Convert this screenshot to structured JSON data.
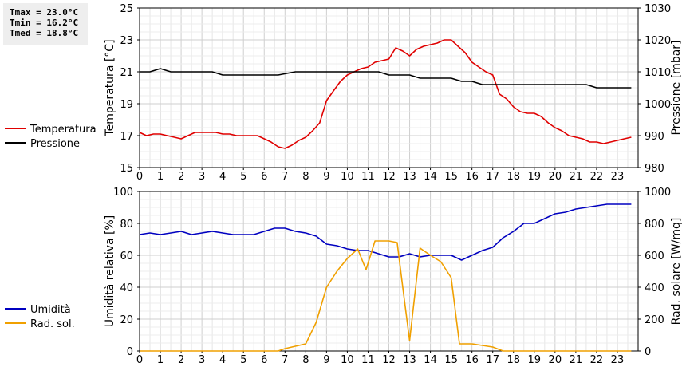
{
  "stats": {
    "tmax": "Tmax = 23.0°C",
    "tmin": "Tmin = 16.2°C",
    "tmed": "Tmed = 18.8°C"
  },
  "chart_data": [
    {
      "type": "line",
      "x_ticks": [
        0,
        1,
        2,
        3,
        4,
        5,
        6,
        7,
        8,
        9,
        10,
        11,
        12,
        13,
        14,
        15,
        16,
        17,
        18,
        19,
        20,
        21,
        22,
        23
      ],
      "xlim": [
        0,
        24
      ],
      "ylabel": "Temperatura [°C]",
      "ylim": [
        15,
        25
      ],
      "y_ticks": [
        15,
        17,
        19,
        21,
        23,
        25
      ],
      "y2label": "Pressione [mbar]",
      "y2lim": [
        980,
        1030
      ],
      "y2_ticks": [
        980,
        990,
        1000,
        1010,
        1020,
        1030
      ],
      "grid": true,
      "legend_position": "left",
      "series": [
        {
          "name": "Temperatura",
          "axis": "left",
          "color": "#e00000",
          "points": [
            [
              0,
              17.2
            ],
            [
              0.33,
              17.0
            ],
            [
              0.67,
              17.1
            ],
            [
              1,
              17.1
            ],
            [
              1.33,
              17.0
            ],
            [
              1.67,
              16.9
            ],
            [
              2,
              16.8
            ],
            [
              2.33,
              17.0
            ],
            [
              2.67,
              17.2
            ],
            [
              3,
              17.2
            ],
            [
              3.33,
              17.2
            ],
            [
              3.67,
              17.2
            ],
            [
              4,
              17.1
            ],
            [
              4.33,
              17.1
            ],
            [
              4.67,
              17.0
            ],
            [
              5,
              17.0
            ],
            [
              5.33,
              17.0
            ],
            [
              5.67,
              17.0
            ],
            [
              6,
              16.8
            ],
            [
              6.33,
              16.6
            ],
            [
              6.67,
              16.3
            ],
            [
              7,
              16.2
            ],
            [
              7.33,
              16.4
            ],
            [
              7.67,
              16.7
            ],
            [
              8,
              16.9
            ],
            [
              8.33,
              17.3
            ],
            [
              8.67,
              17.8
            ],
            [
              9,
              19.2
            ],
            [
              9.33,
              19.8
            ],
            [
              9.67,
              20.4
            ],
            [
              10,
              20.8
            ],
            [
              10.33,
              21.0
            ],
            [
              10.67,
              21.2
            ],
            [
              11,
              21.3
            ],
            [
              11.33,
              21.6
            ],
            [
              11.67,
              21.7
            ],
            [
              12,
              21.8
            ],
            [
              12.33,
              22.5
            ],
            [
              12.67,
              22.3
            ],
            [
              13,
              22.0
            ],
            [
              13.33,
              22.4
            ],
            [
              13.67,
              22.6
            ],
            [
              14,
              22.7
            ],
            [
              14.33,
              22.8
            ],
            [
              14.67,
              23.0
            ],
            [
              15,
              23.0
            ],
            [
              15.33,
              22.6
            ],
            [
              15.67,
              22.2
            ],
            [
              16,
              21.6
            ],
            [
              16.33,
              21.3
            ],
            [
              16.67,
              21.0
            ],
            [
              17,
              20.8
            ],
            [
              17.33,
              19.6
            ],
            [
              17.67,
              19.3
            ],
            [
              18,
              18.8
            ],
            [
              18.33,
              18.5
            ],
            [
              18.67,
              18.4
            ],
            [
              19,
              18.4
            ],
            [
              19.33,
              18.2
            ],
            [
              19.67,
              17.8
            ],
            [
              20,
              17.5
            ],
            [
              20.33,
              17.3
            ],
            [
              20.67,
              17.0
            ],
            [
              21,
              16.9
            ],
            [
              21.33,
              16.8
            ],
            [
              21.67,
              16.6
            ],
            [
              22,
              16.6
            ],
            [
              22.33,
              16.5
            ],
            [
              22.67,
              16.6
            ],
            [
              23,
              16.7
            ],
            [
              23.33,
              16.8
            ],
            [
              23.67,
              16.9
            ]
          ]
        },
        {
          "name": "Pressione",
          "axis": "right",
          "color": "#000000",
          "points": [
            [
              0,
              1010
            ],
            [
              0.5,
              1010
            ],
            [
              1,
              1011
            ],
            [
              1.5,
              1010
            ],
            [
              2,
              1010
            ],
            [
              3,
              1010
            ],
            [
              3.5,
              1010
            ],
            [
              4,
              1009
            ],
            [
              4.5,
              1009
            ],
            [
              5,
              1009
            ],
            [
              6,
              1009
            ],
            [
              6.67,
              1009
            ],
            [
              7.5,
              1010
            ],
            [
              8,
              1010
            ],
            [
              9,
              1010
            ],
            [
              10,
              1010
            ],
            [
              11,
              1010
            ],
            [
              11.5,
              1010
            ],
            [
              12,
              1009
            ],
            [
              12.5,
              1009
            ],
            [
              13,
              1009
            ],
            [
              13.5,
              1008
            ],
            [
              14,
              1008
            ],
            [
              15,
              1008
            ],
            [
              15.5,
              1007
            ],
            [
              16,
              1007
            ],
            [
              16.5,
              1006
            ],
            [
              17,
              1006
            ],
            [
              18,
              1006
            ],
            [
              19,
              1006
            ],
            [
              20,
              1006
            ],
            [
              21,
              1006
            ],
            [
              21.5,
              1006
            ],
            [
              22,
              1005
            ],
            [
              23,
              1005
            ],
            [
              23.67,
              1005
            ]
          ]
        }
      ]
    },
    {
      "type": "line",
      "x_ticks": [
        0,
        1,
        2,
        3,
        4,
        5,
        6,
        7,
        8,
        9,
        10,
        11,
        12,
        13,
        14,
        15,
        16,
        17,
        18,
        19,
        20,
        21,
        22,
        23
      ],
      "xlim": [
        0,
        24
      ],
      "ylabel": "Umidità relativa [%]",
      "ylim": [
        0,
        100
      ],
      "y_ticks": [
        0,
        20,
        40,
        60,
        80,
        100
      ],
      "y2label": "Rad. solare [W/mq]",
      "y2lim": [
        0,
        1000
      ],
      "y2_ticks": [
        0,
        200,
        400,
        600,
        800,
        1000
      ],
      "grid": true,
      "legend_position": "left",
      "series": [
        {
          "name": "Umidità",
          "axis": "left",
          "color": "#0000c0",
          "points": [
            [
              0,
              73
            ],
            [
              0.5,
              74
            ],
            [
              1,
              73
            ],
            [
              1.5,
              74
            ],
            [
              2,
              75
            ],
            [
              2.5,
              73
            ],
            [
              3,
              74
            ],
            [
              3.5,
              75
            ],
            [
              4,
              74
            ],
            [
              4.5,
              73
            ],
            [
              5,
              73
            ],
            [
              5.5,
              73
            ],
            [
              6,
              75
            ],
            [
              6.5,
              77
            ],
            [
              7,
              77
            ],
            [
              7.5,
              75
            ],
            [
              8,
              74
            ],
            [
              8.5,
              72
            ],
            [
              9,
              67
            ],
            [
              9.5,
              66
            ],
            [
              10,
              64
            ],
            [
              10.5,
              63
            ],
            [
              11,
              63
            ],
            [
              11.5,
              61
            ],
            [
              12,
              59
            ],
            [
              12.5,
              59
            ],
            [
              13,
              61
            ],
            [
              13.5,
              59
            ],
            [
              14,
              60
            ],
            [
              14.5,
              60
            ],
            [
              15,
              60
            ],
            [
              15.5,
              57
            ],
            [
              16,
              60
            ],
            [
              16.5,
              63
            ],
            [
              17,
              65
            ],
            [
              17.5,
              71
            ],
            [
              18,
              75
            ],
            [
              18.5,
              80
            ],
            [
              19,
              80
            ],
            [
              19.5,
              83
            ],
            [
              20,
              86
            ],
            [
              20.5,
              87
            ],
            [
              21,
              89
            ],
            [
              21.5,
              90
            ],
            [
              22,
              91
            ],
            [
              22.5,
              92
            ],
            [
              23,
              92
            ],
            [
              23.67,
              92
            ]
          ]
        },
        {
          "name": "Rad. sol.",
          "axis": "right",
          "color": "#f0a000",
          "points": [
            [
              0,
              0
            ],
            [
              6,
              0
            ],
            [
              6.67,
              0
            ],
            [
              7,
              15
            ],
            [
              7.5,
              30
            ],
            [
              8,
              45
            ],
            [
              8.5,
              180
            ],
            [
              9,
              400
            ],
            [
              9.5,
              500
            ],
            [
              10,
              580
            ],
            [
              10.5,
              640
            ],
            [
              10.9,
              510
            ],
            [
              11.33,
              690
            ],
            [
              12,
              690
            ],
            [
              12.4,
              680
            ],
            [
              12.67,
              400
            ],
            [
              13,
              65
            ],
            [
              13.5,
              645
            ],
            [
              14,
              600
            ],
            [
              14.5,
              560
            ],
            [
              15,
              460
            ],
            [
              15.4,
              45
            ],
            [
              16,
              45
            ],
            [
              16.5,
              35
            ],
            [
              17,
              25
            ],
            [
              17.5,
              0
            ],
            [
              18,
              0
            ],
            [
              23.67,
              0
            ]
          ]
        }
      ]
    }
  ]
}
